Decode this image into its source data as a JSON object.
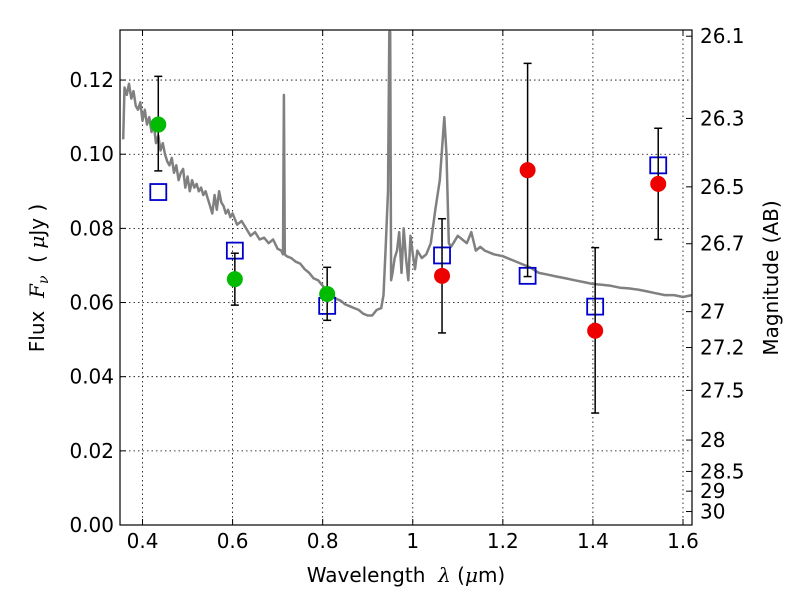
{
  "chart_data": {
    "type": "scatter",
    "xlabel": {
      "prefix": "Wavelength  ",
      "symbol": "λ",
      "unit_open": " (",
      "unit_symbol": "μ",
      "unit_close": "m)"
    },
    "ylabel": {
      "prefix": "Flux  ",
      "symbol": "F",
      "subscript": "ν",
      "unit_open": "  ( ",
      "unit_symbol": "μ",
      "unit_close": "Jy )"
    },
    "y2label": "Magnitude (AB)",
    "xlim": [
      0.35,
      1.62
    ],
    "ylim": [
      0.0,
      0.1335
    ],
    "grid": true,
    "xticks": [
      0.4,
      0.6,
      0.8,
      1.0,
      1.2,
      1.4,
      1.6
    ],
    "xtick_labels": [
      "0.4",
      "0.6",
      "0.8",
      "1",
      "1.2",
      "1.4",
      "1.6"
    ],
    "yticks": [
      0.0,
      0.02,
      0.04,
      0.06,
      0.08,
      0.1,
      0.12
    ],
    "ytick_labels": [
      "0.00",
      "0.02",
      "0.04",
      "0.06",
      "0.08",
      "0.10",
      "0.12"
    ],
    "y2ticks": [
      {
        "label": "26.1",
        "mag": 26.1
      },
      {
        "label": "26.3",
        "mag": 26.3
      },
      {
        "label": "26.5",
        "mag": 26.5
      },
      {
        "label": "26.7",
        "mag": 26.7
      },
      {
        "label": "27",
        "mag": 27.0
      },
      {
        "label": "27.2",
        "mag": 27.2
      },
      {
        "label": "27.5",
        "mag": 27.5
      },
      {
        "label": "28",
        "mag": 28.0
      },
      {
        "label": "28.5",
        "mag": 28.5
      },
      {
        "label": "29",
        "mag": 29.0
      },
      {
        "label": "30",
        "mag": 30.0
      }
    ],
    "series": [
      {
        "kind": "line",
        "color": "#808080",
        "x": [
          0.357,
          0.36,
          0.365,
          0.37,
          0.375,
          0.38,
          0.385,
          0.39,
          0.395,
          0.4,
          0.405,
          0.41,
          0.415,
          0.42,
          0.425,
          0.43,
          0.435,
          0.44,
          0.445,
          0.45,
          0.455,
          0.46,
          0.465,
          0.47,
          0.475,
          0.48,
          0.485,
          0.49,
          0.495,
          0.5,
          0.505,
          0.51,
          0.515,
          0.52,
          0.525,
          0.53,
          0.535,
          0.54,
          0.545,
          0.55,
          0.555,
          0.56,
          0.565,
          0.57,
          0.575,
          0.58,
          0.585,
          0.59,
          0.595,
          0.6,
          0.61,
          0.62,
          0.63,
          0.64,
          0.65,
          0.66,
          0.67,
          0.68,
          0.69,
          0.7,
          0.708,
          0.712,
          0.714,
          0.716,
          0.72,
          0.73,
          0.74,
          0.75,
          0.76,
          0.77,
          0.78,
          0.79,
          0.8,
          0.81,
          0.82,
          0.83,
          0.84,
          0.85,
          0.86,
          0.87,
          0.88,
          0.89,
          0.9,
          0.91,
          0.92,
          0.93,
          0.935,
          0.94,
          0.945,
          0.948,
          0.95,
          0.952,
          0.955,
          0.96,
          0.965,
          0.97,
          0.975,
          0.98,
          0.985,
          0.99,
          0.995,
          1.0,
          1.005,
          1.01,
          1.02,
          1.03,
          1.04,
          1.05,
          1.06,
          1.07,
          1.075,
          1.08,
          1.085,
          1.09,
          1.1,
          1.11,
          1.12,
          1.13,
          1.14,
          1.15,
          1.16,
          1.18,
          1.2,
          1.22,
          1.24,
          1.26,
          1.28,
          1.3,
          1.32,
          1.34,
          1.36,
          1.38,
          1.4,
          1.42,
          1.44,
          1.46,
          1.48,
          1.5,
          1.52,
          1.54,
          1.56,
          1.58,
          1.6,
          1.62
        ],
        "y": [
          0.104,
          0.118,
          0.116,
          0.119,
          0.115,
          0.117,
          0.113,
          0.112,
          0.114,
          0.109,
          0.112,
          0.108,
          0.11,
          0.106,
          0.108,
          0.103,
          0.105,
          0.101,
          0.103,
          0.1,
          0.098,
          0.097,
          0.099,
          0.095,
          0.097,
          0.093,
          0.095,
          0.096,
          0.091,
          0.094,
          0.09,
          0.093,
          0.091,
          0.092,
          0.09,
          0.091,
          0.089,
          0.09,
          0.088,
          0.086,
          0.084,
          0.089,
          0.085,
          0.09,
          0.087,
          0.086,
          0.084,
          0.085,
          0.083,
          0.084,
          0.081,
          0.082,
          0.08,
          0.078,
          0.079,
          0.077,
          0.0775,
          0.076,
          0.077,
          0.0745,
          0.074,
          0.073,
          0.116,
          0.073,
          0.0725,
          0.072,
          0.071,
          0.0705,
          0.069,
          0.068,
          0.0665,
          0.066,
          0.0645,
          0.063,
          0.062,
          0.061,
          0.0605,
          0.0595,
          0.059,
          0.0585,
          0.058,
          0.057,
          0.0565,
          0.0565,
          0.058,
          0.0585,
          0.062,
          0.075,
          0.09,
          0.133,
          0.133,
          0.066,
          0.068,
          0.072,
          0.074,
          0.079,
          0.068,
          0.08,
          0.072,
          0.066,
          0.078,
          0.073,
          0.069,
          0.074,
          0.072,
          0.073,
          0.076,
          0.085,
          0.093,
          0.11,
          0.1,
          0.076,
          0.075,
          0.076,
          0.078,
          0.077,
          0.076,
          0.079,
          0.074,
          0.075,
          0.074,
          0.073,
          0.0725,
          0.0715,
          0.0705,
          0.0695,
          0.068,
          0.0675,
          0.067,
          0.0665,
          0.066,
          0.0655,
          0.065,
          0.0648,
          0.0645,
          0.064,
          0.0638,
          0.0635,
          0.063,
          0.0625,
          0.062,
          0.062,
          0.0615,
          0.062
        ]
      },
      {
        "kind": "open_squares",
        "color": "#0000cc",
        "x": [
          0.435,
          0.605,
          0.81,
          1.065,
          1.255,
          1.405,
          1.545
        ],
        "y": [
          0.0898,
          0.074,
          0.0591,
          0.0727,
          0.0672,
          0.0589,
          0.097
        ]
      },
      {
        "kind": "filled_circles",
        "color": "#00bb00",
        "x": [
          0.435,
          0.605,
          0.81
        ],
        "y": [
          0.108,
          0.0663,
          0.0623
        ],
        "err_low": [
          0.0955,
          0.0593,
          0.0552
        ],
        "err_high": [
          0.121,
          0.0733,
          0.0695
        ]
      },
      {
        "kind": "filled_circles",
        "color": "#ee0000",
        "x": [
          1.065,
          1.255,
          1.405,
          1.545
        ],
        "y": [
          0.0672,
          0.0957,
          0.0524,
          0.092
        ],
        "err_low": [
          0.0518,
          0.067,
          0.0302,
          0.077
        ],
        "err_high": [
          0.0826,
          0.1245,
          0.0748,
          0.107
        ]
      }
    ]
  }
}
